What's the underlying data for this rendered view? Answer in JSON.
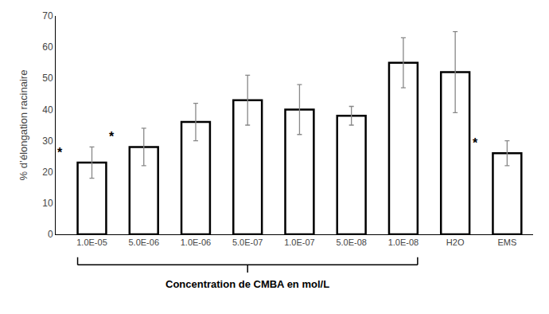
{
  "chart_data": {
    "type": "bar",
    "categories": [
      "1.0E-05",
      "5.0E-06",
      "1.0E-06",
      "5.0E-07",
      "1.0E-07",
      "5.0E-08",
      "1.0E-08",
      "H2O",
      "EMS"
    ],
    "values": [
      23,
      28,
      36,
      43,
      40,
      38,
      55,
      52,
      26
    ],
    "errors_up": [
      5,
      6,
      6,
      8,
      8,
      3,
      8,
      13,
      4
    ],
    "errors_down": [
      5,
      6,
      6,
      8,
      8,
      3,
      8,
      13,
      4
    ],
    "color": "#ffffff",
    "edge_color": "#000000",
    "error_color": "#888888",
    "ylabel": "% d’élongation racinaire",
    "ylim": [
      0,
      70
    ],
    "yticks": [
      0,
      10,
      20,
      30,
      40,
      50,
      60,
      70
    ],
    "grid": false,
    "annotations": [
      {
        "category": "1.0E-05",
        "text": "*"
      },
      {
        "category": "5.0E-06",
        "text": "*"
      },
      {
        "category": "EMS",
        "text": "*"
      }
    ],
    "brace": {
      "from": "1.0E-05",
      "to": "1.0E-08",
      "text": "Concentration de CMBA en mol/L"
    }
  }
}
